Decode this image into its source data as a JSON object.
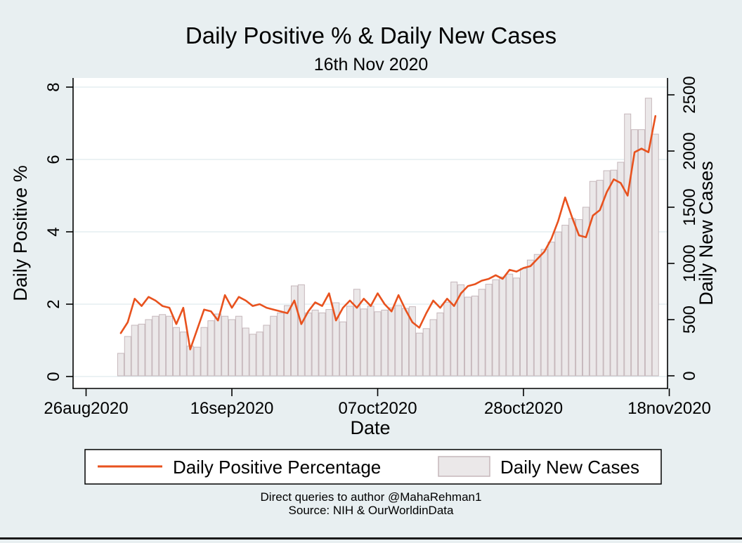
{
  "window": {
    "background_color": "#e8eff1",
    "plot_background_color": "#ffffff",
    "gridline_color": "#dfeaee"
  },
  "header": {
    "title": "Daily Positive % & Daily New Cases",
    "title_color": "#1e3f66",
    "subtitle": "16th Nov 2020"
  },
  "axes": {
    "left": {
      "title": "Daily Positive %",
      "tick_labels": [
        "0",
        "2",
        "4",
        "6",
        "8"
      ],
      "ticks": [
        0,
        2,
        4,
        6,
        8
      ]
    },
    "right": {
      "title": "Daily New Cases",
      "tick_labels": [
        "0",
        "500",
        "1000",
        "1500",
        "2000",
        "2500"
      ],
      "ticks": [
        0,
        500,
        1000,
        1500,
        2000,
        2500
      ]
    },
    "x": {
      "title": "Date",
      "tick_labels": [
        "26aug2020",
        "16sep2020",
        "07oct2020",
        "28oct2020",
        "18nov2020"
      ]
    }
  },
  "legend": {
    "items": [
      {
        "label": "Daily Positive Percentage",
        "swatch": "line-swatch",
        "color": "#e8521e"
      },
      {
        "label": "Daily New Cases",
        "swatch": "bar-swatch",
        "fill": "#ebe8e9",
        "stroke": "#c6b7bb"
      }
    ]
  },
  "captions": {
    "line1": "Direct queries to author @MahaRehman1",
    "line2": "Source: NIH & OurWorldinData"
  },
  "chart_data": {
    "type": "combo",
    "title": "Daily Positive % & Daily New Cases",
    "subtitle": "16th Nov 2020",
    "xlabel": "Date",
    "x_tick_labels": [
      "26aug2020",
      "16sep2020",
      "07oct2020",
      "28oct2020",
      "18nov2020"
    ],
    "x_unit": "day",
    "date_start": "31aug2020",
    "date_end": "16nov2020",
    "grid": "horizontal",
    "legend_position": "bottom",
    "series": [
      {
        "name": "Daily Positive Percentage",
        "type": "line",
        "axis": "left",
        "ylabel": "Daily Positive %",
        "ylim": [
          0,
          8
        ],
        "color": "#e8521e",
        "values": [
          1.2,
          1.5,
          2.15,
          1.95,
          2.2,
          2.1,
          1.95,
          1.9,
          1.45,
          1.9,
          0.75,
          1.3,
          1.85,
          1.8,
          1.55,
          2.25,
          1.9,
          2.2,
          2.1,
          1.95,
          2.0,
          1.9,
          1.85,
          1.8,
          1.75,
          2.1,
          1.45,
          1.8,
          2.05,
          1.95,
          2.3,
          1.55,
          1.9,
          2.1,
          1.9,
          2.15,
          1.95,
          2.3,
          2.0,
          1.8,
          2.25,
          1.85,
          1.5,
          1.35,
          1.75,
          2.1,
          1.9,
          2.15,
          1.95,
          2.3,
          2.5,
          2.55,
          2.65,
          2.7,
          2.8,
          2.7,
          2.95,
          2.9,
          3.0,
          3.05,
          3.25,
          3.45,
          3.8,
          4.3,
          4.95,
          4.4,
          3.9,
          3.85,
          4.45,
          4.6,
          5.1,
          5.45,
          5.35,
          5.0,
          6.2,
          6.3,
          6.2,
          7.2
        ]
      },
      {
        "name": "Daily New Cases",
        "type": "bar",
        "axis": "right",
        "ylabel": "Daily New Cases",
        "ylim": [
          0,
          2500
        ],
        "fill": "#ebe8e9",
        "stroke": "#c6b7bb",
        "values": [
          200,
          350,
          450,
          460,
          500,
          530,
          545,
          530,
          430,
          390,
          265,
          255,
          430,
          490,
          550,
          530,
          500,
          530,
          425,
          370,
          390,
          450,
          530,
          560,
          625,
          800,
          810,
          560,
          585,
          560,
          590,
          650,
          480,
          620,
          770,
          595,
          620,
          570,
          585,
          605,
          625,
          600,
          615,
          380,
          420,
          500,
          560,
          655,
          835,
          810,
          700,
          710,
          770,
          815,
          855,
          880,
          905,
          870,
          955,
          1030,
          1080,
          1125,
          1190,
          1280,
          1340,
          1400,
          1390,
          1500,
          1730,
          1740,
          1825,
          1830,
          1900,
          2330,
          2190,
          2190,
          2470,
          2150
        ]
      }
    ]
  }
}
